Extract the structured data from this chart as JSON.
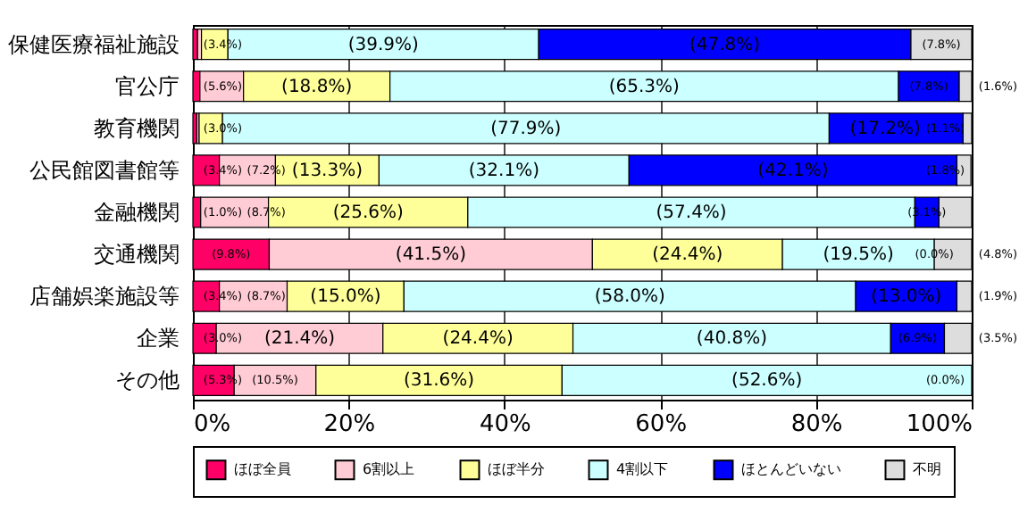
{
  "chart_data": {
    "type": "bar",
    "orientation": "horizontal",
    "stacked": true,
    "categories": [
      "保健医療福祉施設",
      "官公庁",
      "教育機関",
      "公民館図書館等",
      "金融機関",
      "交通機関",
      "店舗娯楽施設等",
      "企業",
      "その他"
    ],
    "series": [
      {
        "name": "ほぼ全員",
        "color": "#ff0066",
        "values": [
          0.6,
          0.9,
          0.5,
          3.4,
          1.0,
          9.8,
          3.4,
          3.0,
          5.3
        ],
        "value_labels": [
          null,
          null,
          null,
          "(3.4%)",
          "(1.0%)",
          "(9.8%)",
          "(3.4%)",
          "(3.0%)",
          "(5.3%)"
        ]
      },
      {
        "name": "6割以上",
        "color": "#ffccd5",
        "values": [
          0.5,
          5.6,
          0.3,
          7.2,
          8.7,
          41.5,
          8.7,
          21.4,
          10.5
        ],
        "value_labels": [
          null,
          "(5.6%)",
          null,
          "(7.2%)",
          "(8.7%)",
          "(41.5%)",
          "(8.7%)",
          "(21.4%)",
          "(10.5%)"
        ]
      },
      {
        "name": "ほぼ半分",
        "color": "#ffff99",
        "values": [
          3.4,
          18.8,
          3.0,
          13.3,
          25.6,
          24.4,
          15.0,
          24.4,
          31.6
        ],
        "value_labels": [
          "(3.4%)",
          "(18.8%)",
          "(3.0%)",
          "(13.3%)",
          "(25.6%)",
          "(24.4%)",
          "(15.0%)",
          "(24.4%)",
          "(31.6%)"
        ]
      },
      {
        "name": "4割以下",
        "color": "#ccffff",
        "values": [
          39.9,
          65.3,
          77.9,
          32.1,
          57.4,
          19.5,
          58.0,
          40.8,
          52.6
        ],
        "value_labels": [
          "(39.9%)",
          "(65.3%)",
          "(77.9%)",
          "(32.1%)",
          "(57.4%)",
          "(19.5%)",
          "(58.0%)",
          "(40.8%)",
          "(52.6%)"
        ]
      },
      {
        "name": "ほとんどいない",
        "color": "#0000ff",
        "values": [
          47.8,
          7.8,
          17.2,
          42.1,
          3.1,
          0.0,
          13.0,
          6.9,
          0.0
        ],
        "value_labels": [
          "(47.8%)",
          "(7.8%)",
          "(17.2%)",
          "(42.1%)",
          "(3.1%)",
          "(0.0%)",
          "(13.0%)",
          "(6.9%)",
          null
        ]
      },
      {
        "name": "不明",
        "color": "#dddddd",
        "values": [
          7.8,
          1.6,
          1.1,
          1.8,
          4.2,
          4.8,
          1.9,
          3.5,
          0.0
        ],
        "value_labels": [
          "(7.8%)",
          "(1.6%)",
          "(1.1%)",
          "(1.8%)",
          null,
          "(4.8%)",
          "(1.9%)",
          "(3.5%)",
          "(0.0%)"
        ]
      }
    ],
    "xlim": [
      0,
      100
    ],
    "xticks": [
      {
        "value": 0,
        "label": "0%"
      },
      {
        "value": 20,
        "label": "20%"
      },
      {
        "value": 40,
        "label": "40%"
      },
      {
        "value": 60,
        "label": "60%"
      },
      {
        "value": 80,
        "label": "80%"
      },
      {
        "value": 100,
        "label": "100%"
      }
    ],
    "grid": "x",
    "legend": "bottom"
  }
}
